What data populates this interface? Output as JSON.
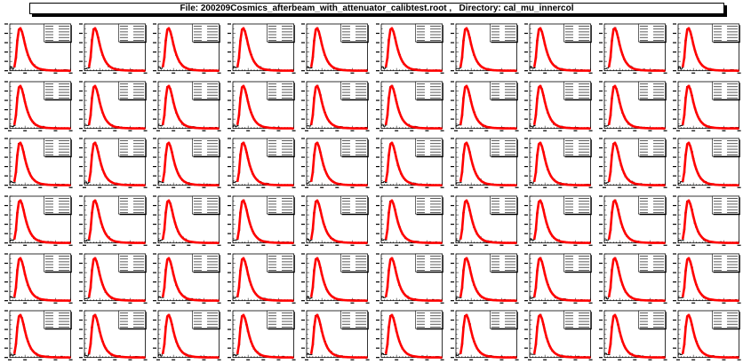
{
  "window": {
    "title": "File: 200209Cosmics_afterbeam_with_attenuator_calibtest.root ,   Directory: cal_mu_innercol"
  },
  "colors": {
    "histogram": "#000000",
    "fit": "#ff0000",
    "background": "#ffffff",
    "frame": "#000000"
  },
  "chart_data": {
    "type": "line",
    "grid": false,
    "layout": "small multiples",
    "rows": 6,
    "columns": 10,
    "panels_per_page": 60,
    "series": [
      {
        "role": "histogram",
        "color": "#000000"
      },
      {
        "role": "fit",
        "color": "#ff0000"
      }
    ],
    "stats_box": {
      "placement": "top-right",
      "lines": 6
    },
    "x": [
      0,
      2,
      4,
      6,
      8,
      10,
      12,
      14,
      16,
      18,
      20,
      22,
      24,
      26,
      28,
      30,
      32,
      34,
      36,
      38,
      40,
      42,
      44,
      46,
      48,
      50,
      52,
      54,
      56,
      58,
      60,
      62,
      64,
      66,
      68,
      70,
      72,
      74,
      76,
      78,
      80
    ],
    "values": [
      0.06,
      0.07,
      0.06,
      0.08,
      0.3,
      0.72,
      0.97,
      1.0,
      0.92,
      0.78,
      0.62,
      0.48,
      0.37,
      0.28,
      0.21,
      0.16,
      0.12,
      0.09,
      0.07,
      0.05,
      0.04,
      0.03,
      0.025,
      0.02,
      0.015,
      0.012,
      0.01,
      0.008,
      0.006,
      0.005,
      0.004,
      0.003,
      0.003,
      0.002,
      0.002,
      0.001,
      0.001,
      0.001,
      0.001,
      0.0,
      0.0
    ],
    "xlim": [
      0,
      80
    ],
    "ylim": [
      0,
      1.1
    ]
  }
}
